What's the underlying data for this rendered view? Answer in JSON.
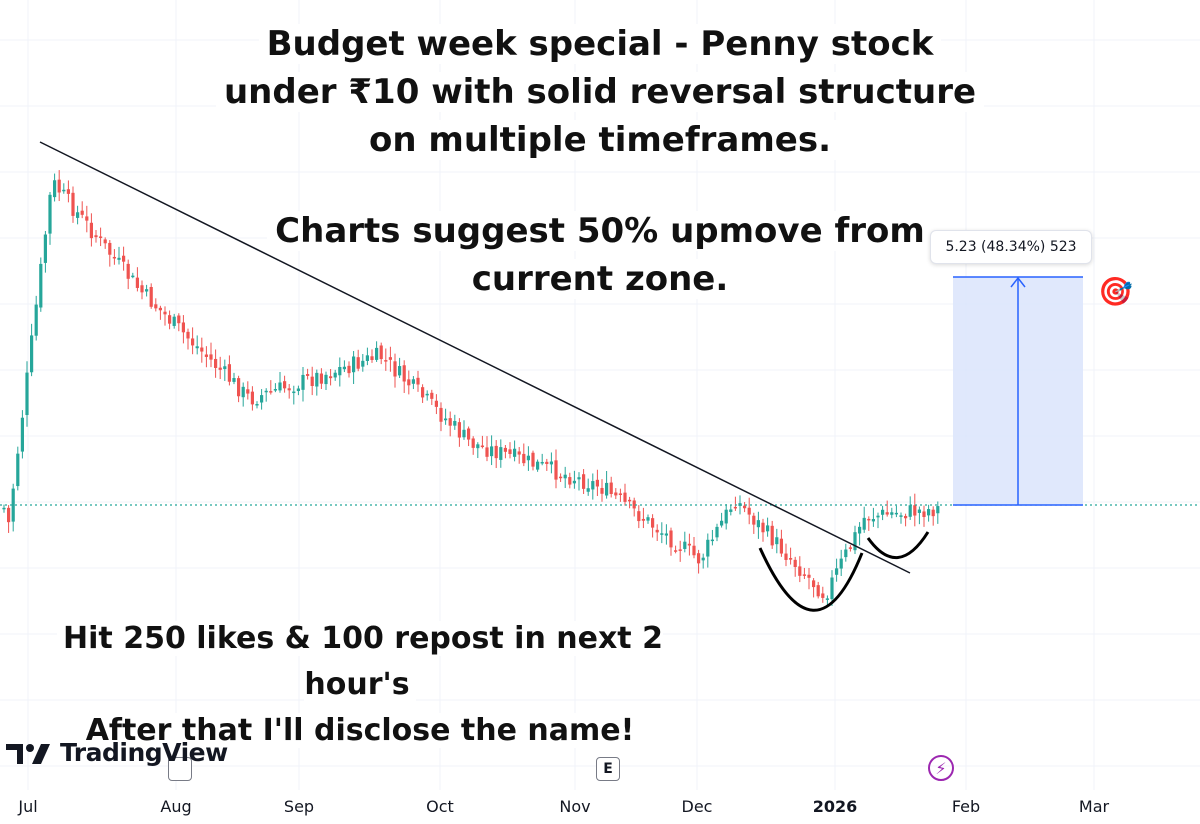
{
  "headline": {
    "line1": "Budget week special - Penny stock",
    "line2": "under ₹10 with solid reversal structure",
    "line3": "on multiple timeframes.",
    "line4": "Charts suggest 50% upmove from",
    "line5": "current zone."
  },
  "cta": {
    "line1": "Hit 250 likes & 100 repost in next 2 hour's",
    "line2": "After that I'll disclose the name!"
  },
  "brand": {
    "name": "TradingView"
  },
  "measure": {
    "label": "5.23 (48.34%) 523",
    "icon": "target-emoji",
    "glyph": "🎯"
  },
  "badges": {
    "earnings": "E",
    "flash_icon": "lightning-icon"
  },
  "colors": {
    "up": "#26a69a",
    "down": "#ef5350",
    "measure_fill": "#dbe4fb",
    "measure_line": "#2962ff",
    "current_line": "#26a69a"
  },
  "chart_data": {
    "type": "candlestick",
    "x_labels": [
      "Jul",
      "Aug",
      "Sep",
      "Oct",
      "Nov",
      "Dec",
      "2026",
      "Feb",
      "Mar"
    ],
    "x_label_bold": "2026",
    "price_axis_visible": false,
    "grid": true,
    "approx_path": [
      {
        "label": "Jul start",
        "close_rel": 0.1
      },
      {
        "label": "Jul peak",
        "close_rel": 0.95
      },
      {
        "label": "Aug",
        "close_rel": 0.7
      },
      {
        "label": "Aug-Sep",
        "close_rel": 0.45
      },
      {
        "label": "Sep spike",
        "close_rel": 0.55
      },
      {
        "label": "Oct",
        "close_rel": 0.35
      },
      {
        "label": "Nov",
        "close_rel": 0.25
      },
      {
        "label": "Dec low",
        "close_rel": 0.08
      },
      {
        "label": "Dec",
        "close_rel": 0.22
      },
      {
        "label": "late Dec low",
        "close_rel": 0.0
      },
      {
        "label": "Jan",
        "close_rel": 0.18
      },
      {
        "label": "late Jan",
        "close_rel": 0.2
      }
    ],
    "measure_change": "5.23 (48.34%) 523",
    "annotations": [
      "downtrend line",
      "rounded bottom",
      "target zone"
    ]
  }
}
